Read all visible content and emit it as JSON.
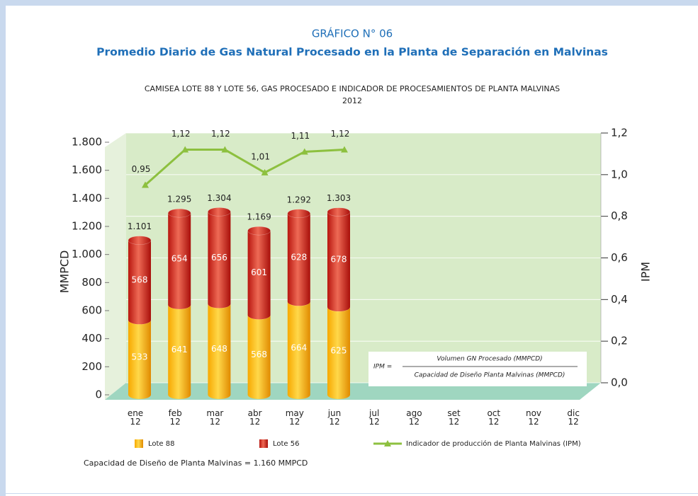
{
  "chart_data": {
    "type": "bar",
    "title": "GRÁFICO N° 06",
    "subtitle": "Promedio Diario de Gas Natural Procesado en la Planta de Separación en Malvinas",
    "caption": "CAMISEA LOTE 88 Y LOTE 56, GAS PROCESADO E INDICADOR DE PROCESAMIENTOS DE PLANTA MALVINAS",
    "year": "2012",
    "ylabel": "MMPCD",
    "y2label": "IPM",
    "categories": [
      "ene\n12",
      "feb\n12",
      "mar\n12",
      "abr\n12",
      "may\n12",
      "jun\n12",
      "jul\n12",
      "ago\n12",
      "set\n12",
      "oct\n12",
      "nov\n12",
      "dic\n12"
    ],
    "series": [
      {
        "name": "Lote 88",
        "color": "#f5b800",
        "values": [
          533,
          641,
          648,
          568,
          664,
          625,
          null,
          null,
          null,
          null,
          null,
          null
        ]
      },
      {
        "name": "Lote 56",
        "color": "#d42a1e",
        "values": [
          568,
          654,
          656,
          601,
          628,
          678,
          null,
          null,
          null,
          null,
          null,
          null
        ]
      },
      {
        "name": "Indicador de producción de Planta Malvinas (IPM)",
        "color": "#8dc03f",
        "axis": "y2",
        "type": "line",
        "values": [
          0.95,
          1.12,
          1.12,
          1.01,
          1.11,
          1.12,
          null,
          null,
          null,
          null,
          null,
          null
        ],
        "value_labels": [
          "0,95",
          "1,12",
          "1,12",
          "1,01",
          "1,11",
          "1,12",
          null,
          null,
          null,
          null,
          null,
          null
        ]
      }
    ],
    "totals": {
      "values": [
        1101,
        1295,
        1304,
        1169,
        1292,
        1303,
        null,
        null,
        null,
        null,
        null,
        null
      ],
      "value_labels": [
        "1.101",
        "1.295",
        "1.304",
        "1.169",
        "1.292",
        "1.303",
        null,
        null,
        null,
        null,
        null,
        null
      ]
    },
    "ylim": [
      0,
      1800
    ],
    "yticks": [
      0,
      200,
      400,
      600,
      800,
      {
        "value": 1000,
        "label": "1.000"
      },
      {
        "value": 1200,
        "label": "1.200"
      },
      {
        "value": 1400,
        "label": "1.400"
      },
      {
        "value": 1600,
        "label": "1.600"
      },
      {
        "value": 1800,
        "label": "1.800"
      }
    ],
    "y2lim": [
      0,
      1.2
    ],
    "y2ticks": [
      {
        "value": 0,
        "label": "0,0"
      },
      {
        "value": 0.2,
        "label": "0,2"
      },
      {
        "value": 0.4,
        "label": "0,4"
      },
      {
        "value": 0.6,
        "label": "0,6"
      },
      {
        "value": 0.8,
        "label": "0,8"
      },
      {
        "value": 1.0,
        "label": "1,0"
      },
      {
        "value": 1.2,
        "label": "1,2"
      }
    ],
    "grid": true,
    "formula": {
      "lhs": "IPM =",
      "numerator": "Volumen GN Procesado (MMPCD)",
      "denominator": "Capacidad de Diseño Planta Malvinas (MMPCD)"
    },
    "footnote": "Capacidad de Diseño de Planta Malvinas = 1.160 MMPCD"
  }
}
